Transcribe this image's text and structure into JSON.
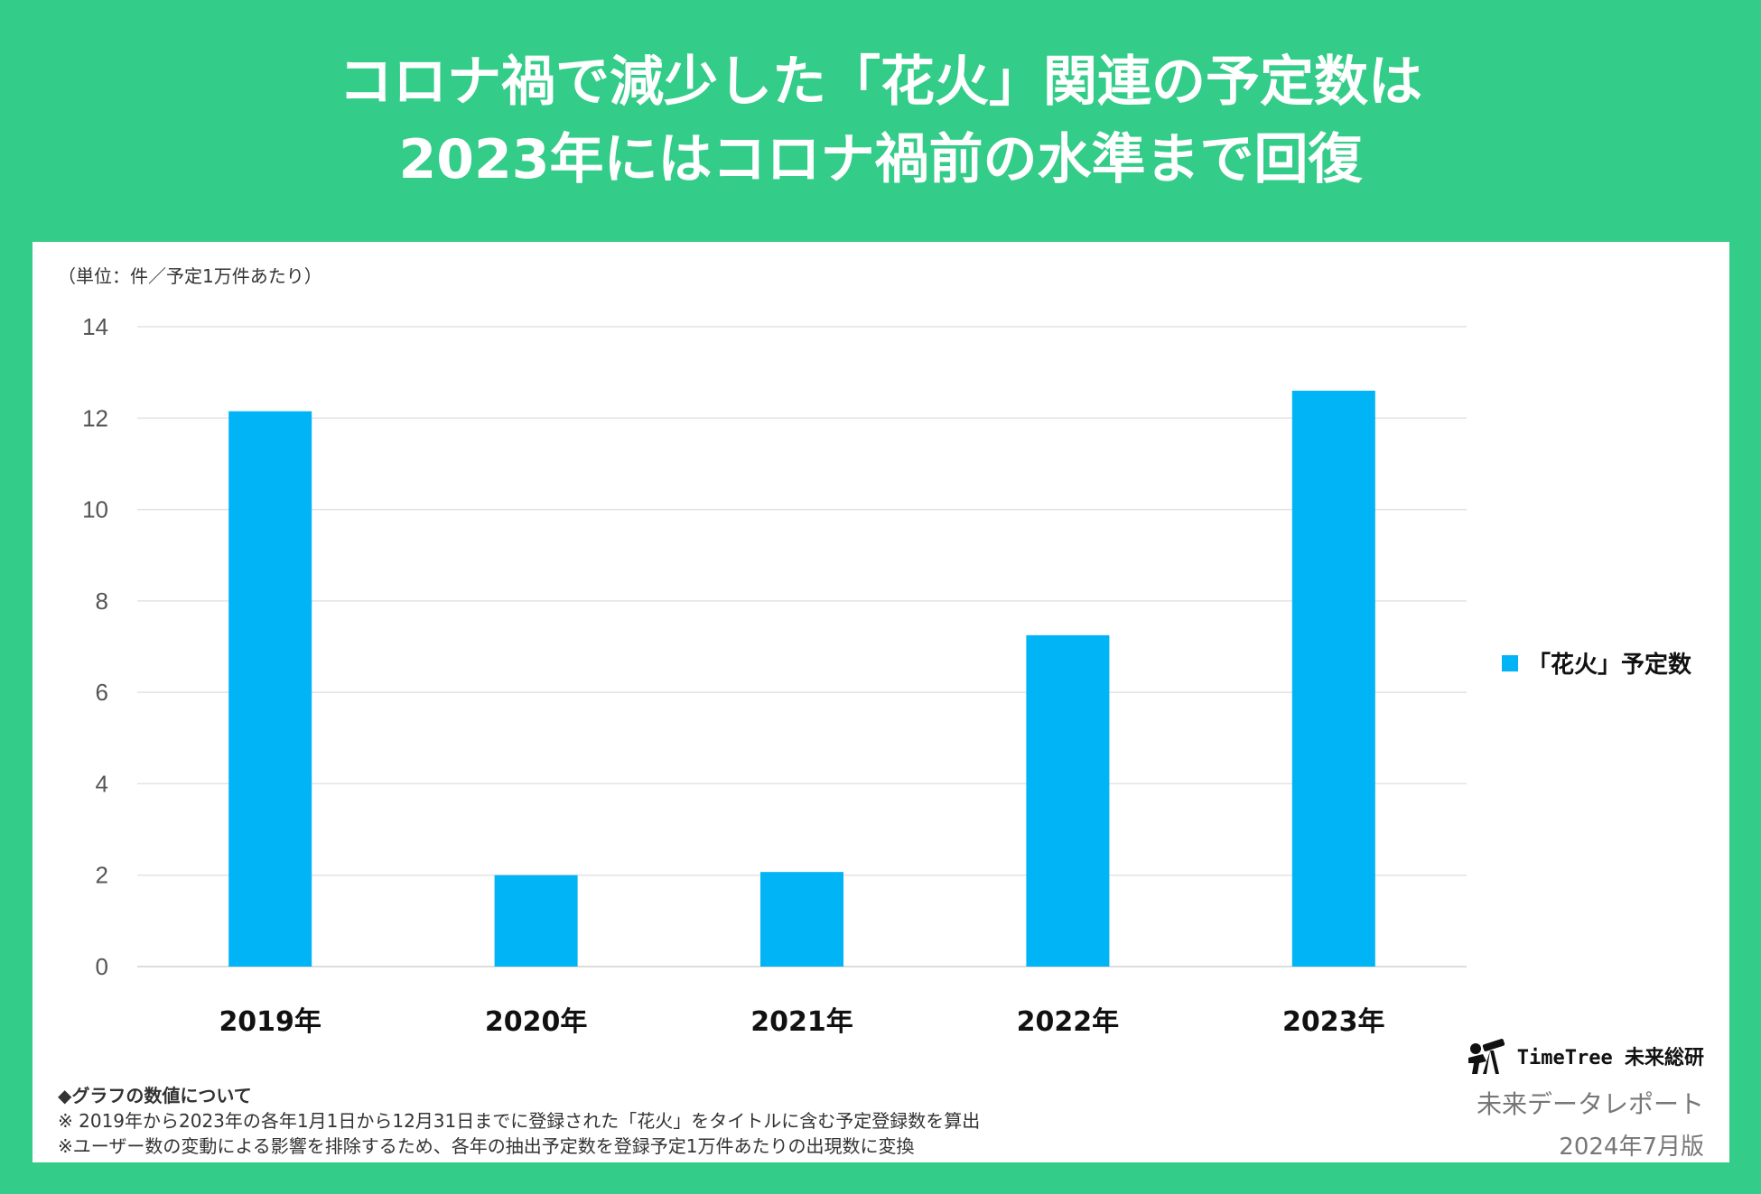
{
  "title": {
    "line1": "コロナ禍で減少した「花火」関連の予定数は",
    "line2": "2023年にはコロナ禍前の水準まで回復"
  },
  "unit_label": "（単位：件／予定1万件あたり）",
  "chart_data": {
    "type": "bar",
    "categories": [
      "2019年",
      "2020年",
      "2021年",
      "2022年",
      "2023年"
    ],
    "series": [
      {
        "name": "「花火」予定数",
        "values": [
          12.15,
          2.0,
          2.07,
          7.25,
          12.6
        ],
        "color": "#00b4f5"
      }
    ],
    "ylim": [
      0,
      14
    ],
    "yticks": [
      "0",
      "2",
      "4",
      "6",
      "8",
      "10",
      "12",
      "14"
    ],
    "grid": true,
    "legend": "right"
  },
  "notes": {
    "heading": "◆グラフの数値について",
    "line1": "※ 2019年から2023年の各年1月1日から12月31日までに登録された「花火」をタイトルに含む予定登録数を算出",
    "line2": "※ユーザー数の変動による影響を排除するため、各年の抽出予定数を登録予定1万件あたりの出現数に変換"
  },
  "brand": {
    "name": "TimeTree 未来総研",
    "report": "未来データレポート",
    "date": "2024年7月版",
    "logo_icon": "person-with-telescope-icon"
  }
}
